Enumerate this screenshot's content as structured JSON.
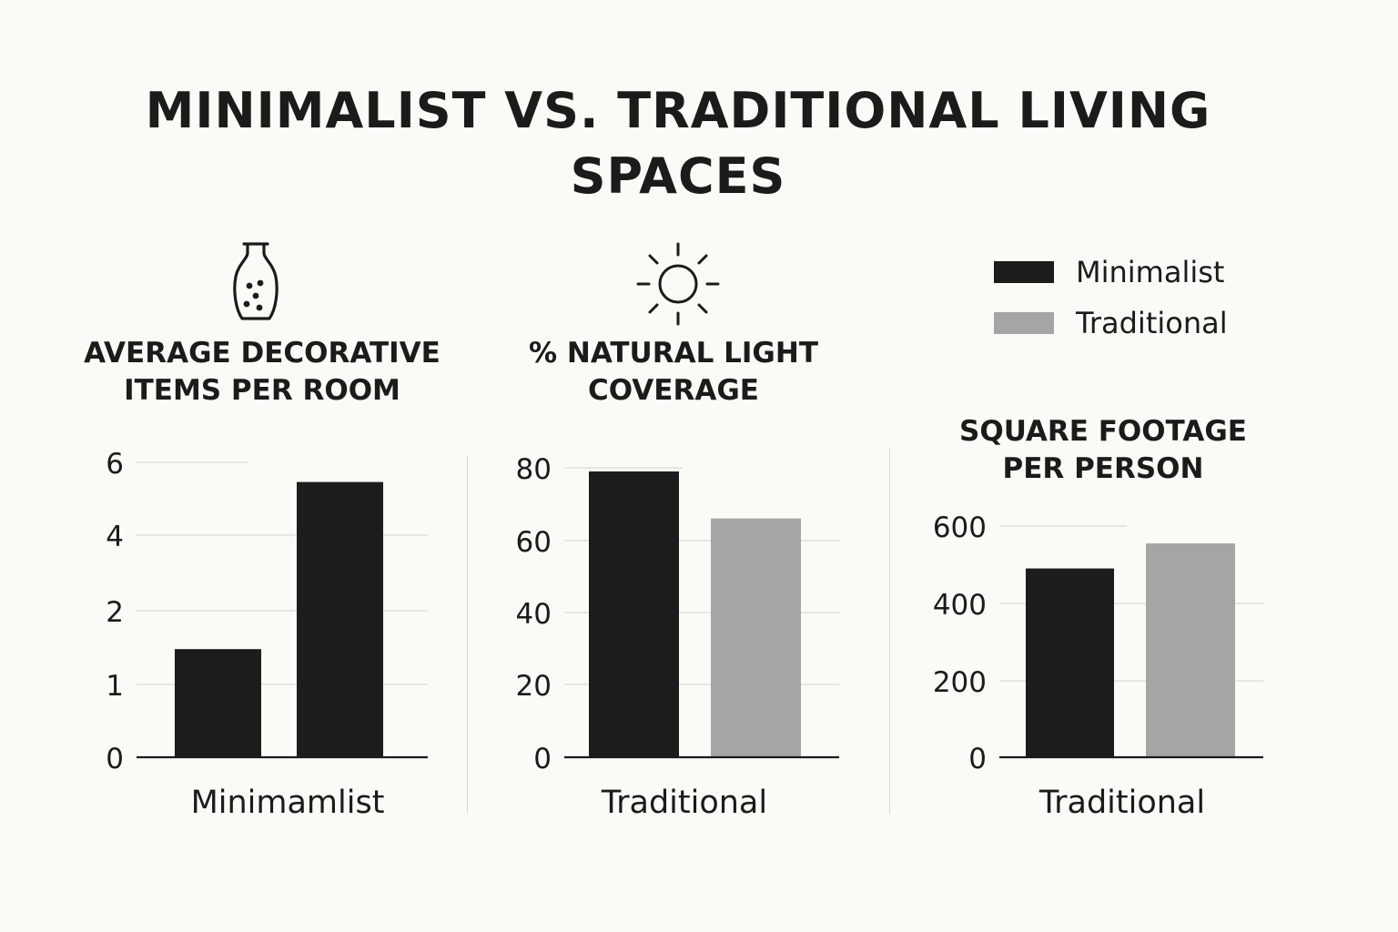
{
  "title": {
    "line1": "MINIMALIST VS. TRADITIONAL LIVING",
    "line2": "SPACES"
  },
  "legend": [
    {
      "label": "Minimalist",
      "color": "#1c1c1c"
    },
    {
      "label": "Traditional",
      "color": "#a5a5a5"
    }
  ],
  "icons": {
    "panel1": "vase-icon",
    "panel2": "sun-icon"
  },
  "chart_data": [
    {
      "type": "bar",
      "title": "AVERAGE DECORATIVE ITEMS PER ROOM",
      "title_lines": [
        "AVERAGE DECORATIVE",
        "ITEMS PER ROOM"
      ],
      "xlabel": "Minimamlist",
      "ylabel": "",
      "yticks": [
        "0",
        "1",
        "2",
        "4",
        "6"
      ],
      "ylim": [
        0,
        6
      ],
      "series": [
        {
          "values": [
            2.2,
            5.6
          ],
          "colors": [
            "#1c1c1c",
            "#1c1c1c"
          ]
        }
      ],
      "grid": true
    },
    {
      "type": "bar",
      "title": "% NATURAL LIGHT COVERAGE",
      "title_lines": [
        "% NATURAL LIGHT",
        "COVERAGE"
      ],
      "xlabel": "Traditional",
      "ylabel": "",
      "yticks": [
        "0",
        "20",
        "40",
        "60",
        "80"
      ],
      "ylim": [
        0,
        80
      ],
      "series": [
        {
          "values": [
            79,
            66
          ],
          "colors": [
            "#1c1c1c",
            "#a5a5a5"
          ]
        }
      ],
      "grid": true
    },
    {
      "type": "bar",
      "title": "SQUARE FOOTAGE PER PERSON",
      "title_lines": [
        "SQUARE FOOTAGE",
        "PER PERSON"
      ],
      "xlabel": "Traditional",
      "ylabel": "",
      "yticks": [
        "0",
        "200",
        "400",
        "600"
      ],
      "ylim": [
        0,
        600
      ],
      "series": [
        {
          "values": [
            490,
            555
          ],
          "colors": [
            "#1c1c1c",
            "#a5a5a5"
          ]
        }
      ],
      "grid": true
    }
  ]
}
